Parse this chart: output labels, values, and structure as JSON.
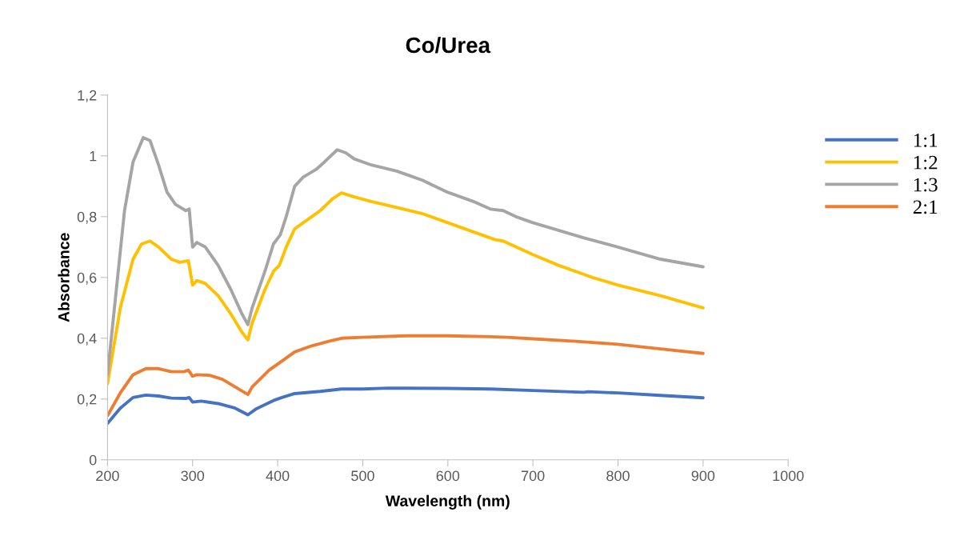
{
  "chart_data": {
    "type": "line",
    "title": "Co/Urea",
    "xlabel": "Wavelength (nm)",
    "ylabel": "Absorbance",
    "xlim": [
      200,
      1000
    ],
    "xticks": [
      200,
      300,
      400,
      500,
      600,
      700,
      800,
      900,
      1000
    ],
    "ylim": [
      0,
      1.2
    ],
    "yticks": [
      0,
      {
        "value": 0.2,
        "label": "0,2"
      },
      {
        "value": 0.4,
        "label": "0,4"
      },
      {
        "value": 0.6,
        "label": "0,6"
      },
      {
        "value": 0.8,
        "label": "0,8"
      },
      1,
      {
        "value": 1.2,
        "label": "1,2"
      }
    ],
    "grid": false,
    "legend": "right",
    "marker": "none",
    "line_style": "solid",
    "series": [
      {
        "name": "1:1",
        "color": "#4472c4",
        "x": [
          200,
          215,
          230,
          245,
          260,
          275,
          292,
          296,
          300,
          310,
          330,
          350,
          365,
          375,
          395,
          405,
          420,
          450,
          475,
          500,
          530,
          600,
          650,
          700,
          760,
          765,
          800,
          850,
          900
        ],
        "values": [
          0.12,
          0.17,
          0.205,
          0.213,
          0.21,
          0.203,
          0.202,
          0.205,
          0.19,
          0.193,
          0.185,
          0.17,
          0.148,
          0.168,
          0.195,
          0.205,
          0.218,
          0.225,
          0.233,
          0.233,
          0.236,
          0.235,
          0.233,
          0.228,
          0.222,
          0.224,
          0.22,
          0.212,
          0.204
        ]
      },
      {
        "name": "1:2",
        "color": "#ffc000",
        "x": [
          200,
          215,
          230,
          240,
          250,
          260,
          275,
          285,
          295,
          300,
          305,
          315,
          330,
          345,
          358,
          365,
          370,
          385,
          395,
          402,
          410,
          420,
          440,
          450,
          465,
          475,
          490,
          510,
          540,
          570,
          600,
          630,
          655,
          665,
          700,
          730,
          760,
          770,
          800,
          850,
          900
        ],
        "values": [
          0.25,
          0.5,
          0.66,
          0.71,
          0.72,
          0.7,
          0.66,
          0.65,
          0.655,
          0.575,
          0.59,
          0.58,
          0.54,
          0.48,
          0.42,
          0.395,
          0.45,
          0.56,
          0.62,
          0.64,
          0.7,
          0.76,
          0.8,
          0.82,
          0.86,
          0.878,
          0.865,
          0.85,
          0.83,
          0.81,
          0.78,
          0.75,
          0.725,
          0.72,
          0.675,
          0.64,
          0.61,
          0.6,
          0.575,
          0.54,
          0.5
        ]
      },
      {
        "name": "1:3",
        "color": "#a5a5a5",
        "x": [
          200,
          210,
          220,
          230,
          242,
          250,
          260,
          270,
          280,
          292,
          296,
          300,
          305,
          315,
          330,
          345,
          358,
          365,
          370,
          385,
          395,
          403,
          410,
          420,
          430,
          445,
          455,
          470,
          480,
          490,
          510,
          540,
          570,
          600,
          630,
          650,
          665,
          680,
          700,
          730,
          760,
          800,
          850,
          900
        ],
        "values": [
          0.28,
          0.55,
          0.82,
          0.98,
          1.06,
          1.05,
          0.97,
          0.88,
          0.84,
          0.82,
          0.825,
          0.7,
          0.715,
          0.7,
          0.64,
          0.56,
          0.48,
          0.445,
          0.5,
          0.62,
          0.71,
          0.74,
          0.8,
          0.9,
          0.93,
          0.955,
          0.98,
          1.02,
          1.01,
          0.99,
          0.97,
          0.95,
          0.92,
          0.88,
          0.85,
          0.825,
          0.82,
          0.8,
          0.78,
          0.755,
          0.73,
          0.7,
          0.66,
          0.635
        ]
      },
      {
        "name": "2:1",
        "color": "#ed7d31",
        "x": [
          200,
          215,
          230,
          245,
          260,
          275,
          290,
          295,
          300,
          305,
          320,
          335,
          350,
          365,
          370,
          390,
          400,
          420,
          440,
          460,
          475,
          500,
          550,
          600,
          650,
          670,
          700,
          750,
          800,
          850,
          900
        ],
        "values": [
          0.145,
          0.22,
          0.28,
          0.3,
          0.3,
          0.29,
          0.29,
          0.295,
          0.275,
          0.28,
          0.278,
          0.265,
          0.24,
          0.215,
          0.24,
          0.295,
          0.315,
          0.355,
          0.375,
          0.39,
          0.4,
          0.403,
          0.408,
          0.408,
          0.405,
          0.403,
          0.398,
          0.39,
          0.38,
          0.365,
          0.35
        ]
      }
    ]
  }
}
